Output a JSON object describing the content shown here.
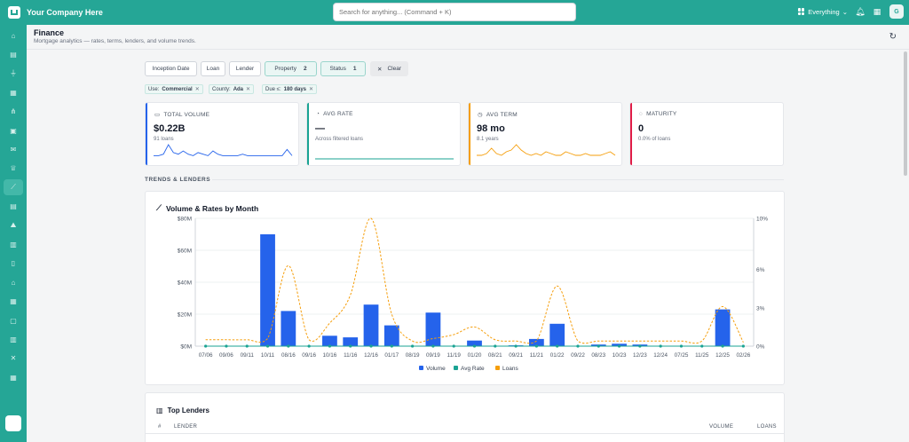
{
  "app": {
    "company": "Your Company Here",
    "search_placeholder": "Search for anything... (Command + K)",
    "scope_label": "Everything",
    "avatar_letter": "G"
  },
  "sidebar": {
    "icons": [
      "home-icon",
      "inbox-icon",
      "filter-icon",
      "table-icon",
      "network-icon",
      "document-icon",
      "mail-icon",
      "crown-icon",
      "chart-line-icon",
      "receipt-icon",
      "mountain-icon",
      "building-icon",
      "file-icon",
      "bank-icon",
      "calculator-icon",
      "chat-icon",
      "bar-chart-icon",
      "share-icon",
      "grid-icon"
    ],
    "active_index": 8
  },
  "header": {
    "title": "Finance",
    "subtitle": "Mortgage analytics — rates, terms, lenders, and volume trends."
  },
  "filters": {
    "chips": [
      {
        "label": "Inception Date",
        "count": "",
        "active": false
      },
      {
        "label": "Loan",
        "count": "",
        "active": false
      },
      {
        "label": "Lender",
        "count": "",
        "active": false
      },
      {
        "label": "Property",
        "count": "2",
        "active": true
      },
      {
        "label": "Status",
        "count": "1",
        "active": true
      }
    ],
    "clear_label": "Clear",
    "tags": [
      {
        "key": "Use:",
        "value": "Commercial"
      },
      {
        "key": "County:",
        "value": "Ada"
      },
      {
        "key": "Due ≤:",
        "value": "180 days"
      }
    ]
  },
  "kpis": [
    {
      "label": "TOTAL VOLUME",
      "value": "$0.22B",
      "sub": "91 loans",
      "color": "#2563eb",
      "icon": "cash-icon",
      "spark": [
        2,
        2,
        3,
        9,
        4,
        3,
        5,
        3,
        2,
        4,
        3,
        2,
        5,
        3,
        2,
        2,
        2,
        2,
        3,
        2,
        2,
        2,
        2,
        2,
        2,
        2,
        2,
        6,
        2
      ]
    },
    {
      "label": "AVG RATE",
      "value": "—",
      "sub": "Across filtered loans",
      "color": "#1aa393",
      "icon": "gauge-icon",
      "spark": [
        0,
        0,
        0,
        0,
        0,
        0,
        0,
        0,
        0,
        0,
        0,
        0,
        0,
        0,
        0,
        0,
        0,
        0,
        0,
        0,
        0,
        0,
        0,
        0,
        0,
        0,
        0,
        0,
        0
      ]
    },
    {
      "label": "AVG TERM",
      "value": "98 mo",
      "sub": "8.1 years",
      "color": "#f59e0b",
      "icon": "clock-icon",
      "spark": [
        2,
        2,
        3,
        6,
        3,
        2,
        4,
        5,
        8,
        5,
        3,
        2,
        3,
        2,
        4,
        3,
        2,
        2,
        4,
        3,
        2,
        2,
        3,
        2,
        2,
        2,
        3,
        4,
        2
      ]
    },
    {
      "label": "MATURITY",
      "value": "0",
      "sub": "0.0% of loans",
      "color": "#e11d48",
      "icon": "timer-icon",
      "spark": []
    }
  ],
  "section": {
    "label": "TRENDS & LENDERS"
  },
  "volume_chart": {
    "title": "Volume & Rates by Month",
    "legend": [
      "Volume",
      "Avg Rate",
      "Loans"
    ]
  },
  "chart_data": {
    "type": "bar",
    "title": "Volume & Rates by Month",
    "categories": [
      "07/06",
      "09/06",
      "09/11",
      "10/11",
      "08/16",
      "09/16",
      "10/16",
      "11/16",
      "12/16",
      "01/17",
      "08/19",
      "09/19",
      "11/19",
      "01/20",
      "08/21",
      "09/21",
      "11/21",
      "01/22",
      "09/22",
      "08/23",
      "10/23",
      "12/23",
      "12/24",
      "07/25",
      "11/25",
      "12/25",
      "02/26"
    ],
    "y_left": {
      "ticks": [
        "$0M",
        "$20M",
        "$40M",
        "$60M",
        "$80M"
      ],
      "range": [
        0,
        80
      ]
    },
    "y_right": {
      "ticks": [
        "0%",
        "3%",
        "6%",
        "10%"
      ],
      "range": [
        0,
        10
      ]
    },
    "series": [
      {
        "name": "Volume",
        "type": "bar",
        "color": "#2563eb",
        "unit": "$M",
        "values": [
          0,
          0,
          0,
          70,
          22,
          0,
          6.5,
          5.5,
          26,
          13,
          0,
          21,
          0,
          3.5,
          0,
          0.5,
          4.5,
          14,
          0,
          1,
          1.5,
          1,
          0,
          0,
          0,
          23,
          0
        ]
      },
      {
        "name": "Avg Rate",
        "type": "line",
        "color": "#1aa393",
        "unit": "%",
        "values": [
          0,
          0,
          0,
          0,
          0,
          0,
          0,
          0,
          0,
          0,
          0,
          0,
          0,
          0,
          0,
          0,
          0,
          0,
          0,
          0,
          0,
          0,
          0,
          0,
          0,
          0,
          0
        ]
      },
      {
        "name": "Loans",
        "type": "line",
        "color": "#f59e0b",
        "unit": "%",
        "values": [
          0.5,
          0.5,
          0.5,
          0.6,
          6.3,
          0.5,
          1.8,
          4,
          10,
          2.5,
          0.4,
          0.6,
          0.9,
          1.5,
          0.5,
          0.4,
          0.4,
          4.7,
          0.4,
          0.4,
          0.4,
          0.4,
          0.4,
          0.4,
          0.4,
          3.1,
          0.3
        ]
      }
    ],
    "legend_position": "bottom",
    "grid": true
  },
  "lenders": {
    "title": "Top Lenders",
    "columns": [
      "#",
      "LENDER",
      "VOLUME",
      "LOANS"
    ]
  }
}
